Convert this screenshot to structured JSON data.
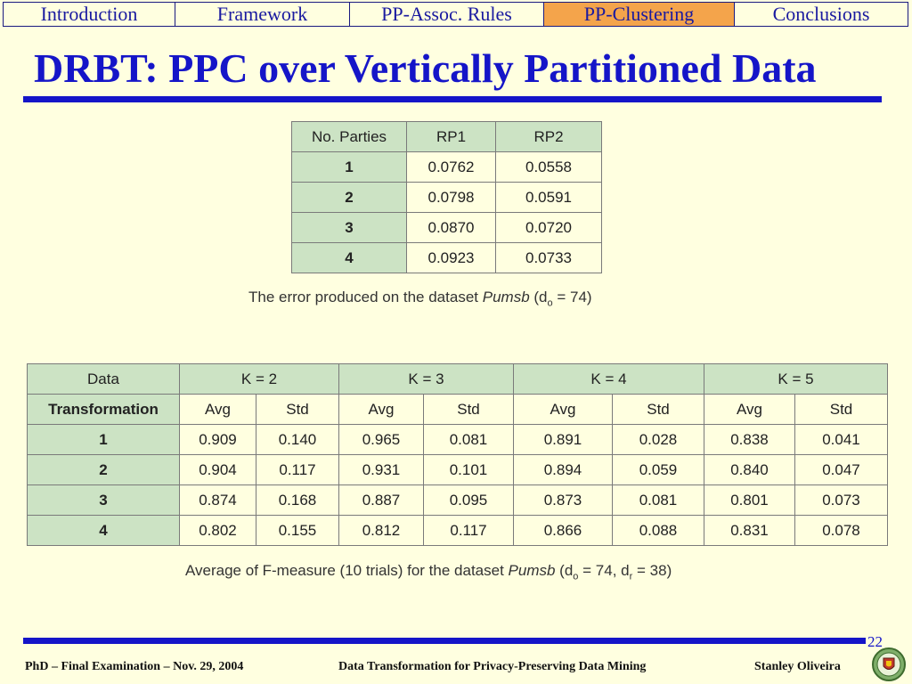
{
  "nav": {
    "tabs": [
      "Introduction",
      "Framework",
      "PP-Assoc. Rules",
      "PP-Clustering",
      "Conclusions"
    ],
    "active_index": 3
  },
  "title": "DRBT: PPC over Vertically Partitioned Data",
  "table1": {
    "headers": [
      "No. Parties",
      "RP1",
      "RP2"
    ],
    "rows": [
      [
        "1",
        "0.0762",
        "0.0558"
      ],
      [
        "2",
        "0.0798",
        "0.0591"
      ],
      [
        "3",
        "0.0870",
        "0.0720"
      ],
      [
        "4",
        "0.0923",
        "0.0733"
      ]
    ]
  },
  "caption1": {
    "prefix": "The error produced on the dataset ",
    "dataset": "Pumsb",
    "open": " (d",
    "sub": "o",
    "rest": " = 74)"
  },
  "table2": {
    "head_top": "Data",
    "head_bottom": "Transformation",
    "groups": [
      "K = 2",
      "K = 3",
      "K = 4",
      "K = 5"
    ],
    "subheaders": [
      "Avg",
      "Std",
      "Avg",
      "Std",
      "Avg",
      "Std",
      "Avg",
      "Std"
    ],
    "rows": [
      [
        "1",
        "0.909",
        "0.140",
        "0.965",
        "0.081",
        "0.891",
        "0.028",
        "0.838",
        "0.041"
      ],
      [
        "2",
        "0.904",
        "0.117",
        "0.931",
        "0.101",
        "0.894",
        "0.059",
        "0.840",
        "0.047"
      ],
      [
        "3",
        "0.874",
        "0.168",
        "0.887",
        "0.095",
        "0.873",
        "0.081",
        "0.801",
        "0.073"
      ],
      [
        "4",
        "0.802",
        "0.155",
        "0.812",
        "0.117",
        "0.866",
        "0.088",
        "0.831",
        "0.078"
      ]
    ]
  },
  "caption2": {
    "prefix": "Average of F-measure (10 trials) for the dataset ",
    "dataset": "Pumsb",
    "open": "  (d",
    "sub1": "o",
    "mid": " = 74, d",
    "sub2": "r",
    "rest": " = 38)"
  },
  "page_number": "22",
  "footer": {
    "left": "PhD – Final Examination – Nov. 29, 2004",
    "center": "Data Transformation for Privacy-Preserving Data Mining",
    "right": "Stanley Oliveira"
  },
  "colors": {
    "title_blue": "#1515C8",
    "active_tab": "#F4A44B",
    "header_green": "#CCE3C4",
    "background": "#FFFFE0"
  },
  "icons": {
    "logo": "university-crest-icon"
  }
}
